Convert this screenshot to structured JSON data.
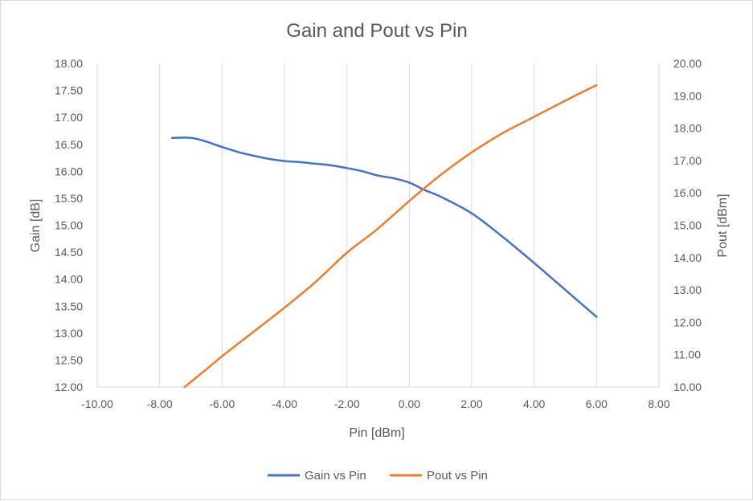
{
  "chart_data": {
    "type": "line",
    "title": "Gain and Pout vs Pin",
    "xlabel": "Pin [dBm]",
    "ylabel": "Gain [dB]",
    "y2label": "Pout [dBm]",
    "xlim": [
      -10,
      8
    ],
    "ylim": [
      12,
      18
    ],
    "y2lim": [
      10,
      20
    ],
    "x_ticks": [
      "-10.00",
      "-8.00",
      "-6.00",
      "-4.00",
      "-2.00",
      "0.00",
      "2.00",
      "4.00",
      "6.00",
      "8.00"
    ],
    "y_ticks": [
      "12.00",
      "12.50",
      "13.00",
      "13.50",
      "14.00",
      "14.50",
      "15.00",
      "15.50",
      "16.00",
      "16.50",
      "17.00",
      "17.50",
      "18.00"
    ],
    "y2_ticks": [
      "10.00",
      "11.00",
      "12.00",
      "13.00",
      "14.00",
      "15.00",
      "16.00",
      "17.00",
      "18.00",
      "19.00",
      "20.00"
    ],
    "grid": "vertical",
    "legend_position": "bottom",
    "series": [
      {
        "name": "Gain vs Pin",
        "axis": "left",
        "color": "#4472c4",
        "x": [
          -7.6,
          -7.0,
          -6.5,
          -6.0,
          -5.5,
          -5.0,
          -4.5,
          -4.0,
          -3.5,
          -3.0,
          -2.5,
          -2.0,
          -1.5,
          -1.0,
          -0.5,
          0.0,
          0.5,
          1.0,
          2.0,
          3.0,
          4.0,
          5.0,
          6.0
        ],
        "values": [
          16.62,
          16.62,
          16.55,
          16.45,
          16.36,
          16.29,
          16.23,
          16.19,
          16.17,
          16.14,
          16.11,
          16.06,
          16.0,
          15.92,
          15.87,
          15.79,
          15.65,
          15.53,
          15.22,
          14.78,
          14.3,
          13.8,
          13.3
        ]
      },
      {
        "name": "Pout vs Pin",
        "axis": "right",
        "color": "#ed7d31",
        "x": [
          -7.2,
          -6.5,
          -6.0,
          -5.0,
          -4.0,
          -3.0,
          -2.0,
          -1.0,
          0.0,
          1.0,
          2.0,
          3.0,
          4.0,
          5.0,
          6.0
        ],
        "values": [
          10.0,
          10.55,
          10.95,
          11.7,
          12.45,
          13.25,
          14.15,
          14.9,
          15.75,
          16.55,
          17.25,
          17.85,
          18.35,
          18.85,
          19.33
        ]
      }
    ]
  }
}
